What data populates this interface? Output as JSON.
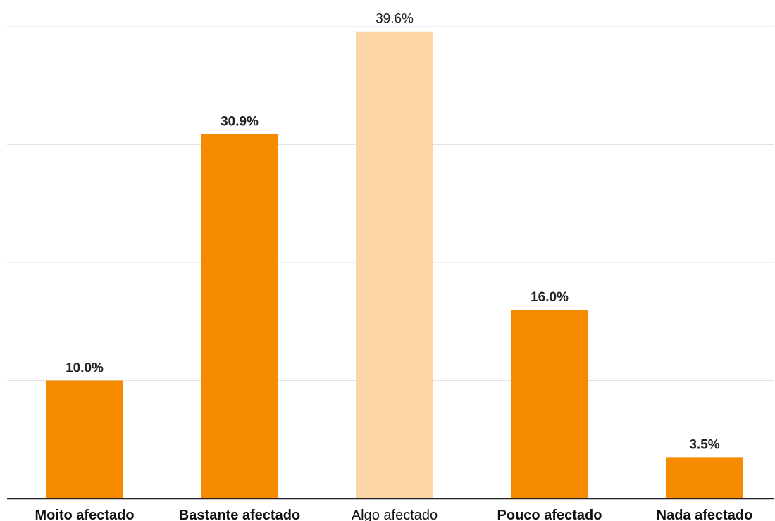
{
  "chart_data": {
    "type": "bar",
    "categories": [
      "Moito afectado",
      "Bastante afectado",
      "Algo afectado",
      "Pouco afectado",
      "Nada afectado"
    ],
    "values": [
      10.0,
      30.9,
      39.6,
      16.0,
      3.5
    ],
    "value_labels": [
      "10.0%",
      "30.9%",
      "39.6%",
      "16.0%",
      "3.5%"
    ],
    "highlighted": [
      true,
      true,
      false,
      true,
      true
    ],
    "title": "",
    "xlabel": "",
    "ylabel": "",
    "ylim": [
      0,
      40
    ],
    "grid": true,
    "colors": {
      "bar": "#f78b00",
      "bar_muted": "#fbd5a5",
      "grid": "#e2e2e2",
      "axis": "#222222"
    }
  }
}
